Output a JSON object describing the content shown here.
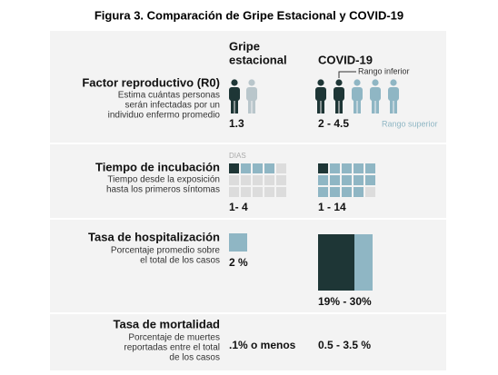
{
  "title": "Figura 3. Comparación de Gripe Estacional y COVID-19",
  "columns": {
    "flu": [
      "Gripe",
      "estacional"
    ],
    "covid": "COVID-19"
  },
  "r0": {
    "heading": "Factor reproductivo (R0)",
    "description": [
      "Estima cuántas personas",
      "serán infectadas por un",
      "individuo enfermo promedio"
    ],
    "flu": "1.3",
    "covid": "2 - 4.5",
    "lower_label": "Rango inferior",
    "upper_label": "Rango superior"
  },
  "incubation": {
    "heading": "Tiempo de incubación",
    "description": [
      "Tiempo desde la exposición",
      "hasta los primeros síntomas"
    ],
    "unit": "DIAS",
    "flu": "1- 4",
    "covid": "1 - 14"
  },
  "hospitalization": {
    "heading": "Tasa de hospitalización",
    "description": [
      "Porcentaje promedio sobre",
      "el total de los casos"
    ],
    "flu": "2 %",
    "covid": "19% - 30%"
  },
  "mortality": {
    "heading": "Tasa de mortalidad",
    "description": [
      "Porcentaje de muertes",
      "reportadas entre el total",
      "de los casos"
    ],
    "flu": ".1% o menos",
    "covid": "0.5 - 3.5 %"
  }
}
